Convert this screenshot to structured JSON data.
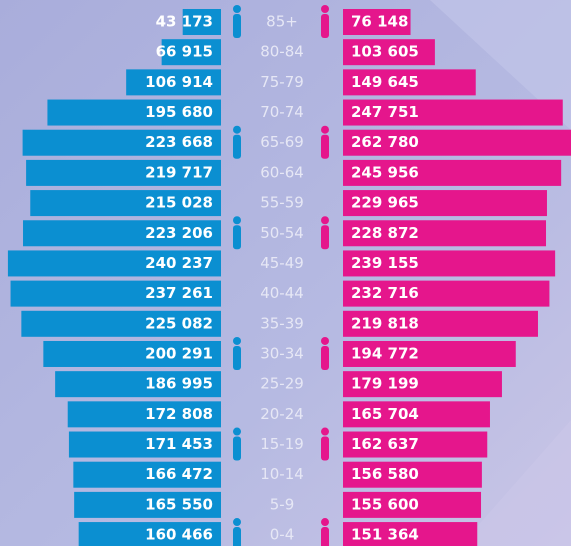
{
  "chart_data": {
    "type": "pyramid",
    "categories": [
      "85+",
      "80-84",
      "75-79",
      "70-74",
      "65-69",
      "60-64",
      "55-59",
      "50-54",
      "45-49",
      "40-44",
      "35-39",
      "30-34",
      "25-29",
      "20-24",
      "15-19",
      "10-14",
      "5-9",
      "0-4"
    ],
    "series": [
      {
        "color": "#0b8fd1",
        "values": [
          43173,
          66915,
          106914,
          195680,
          223668,
          219717,
          215028,
          223206,
          240237,
          237261,
          225082,
          200291,
          186995,
          172808,
          171453,
          166472,
          165550,
          160466
        ],
        "value_labels": [
          "43 173",
          "66 915",
          "106 914",
          "195 680",
          "223 668",
          "219 717",
          "215 028",
          "223 206",
          "240 237",
          "237 261",
          "225 082",
          "200 291",
          "186 995",
          "172 808",
          "171 453",
          "166 472",
          "165 550",
          "160 466"
        ]
      },
      {
        "color": "#e5168c",
        "values": [
          76148,
          103605,
          149645,
          247751,
          262780,
          245956,
          229965,
          228872,
          239155,
          232716,
          219818,
          194772,
          179199,
          165704,
          162637,
          156580,
          155600,
          151364
        ],
        "value_labels": [
          "76 148",
          "103 605",
          "149 645",
          "247 751",
          "262 780",
          "245 956",
          "229 965",
          "228 872",
          "239 155",
          "232 716",
          "219 818",
          "194 772",
          "179 199",
          "165 704",
          "162 637",
          "156 580",
          "155 600",
          "151 364"
        ]
      }
    ]
  }
}
